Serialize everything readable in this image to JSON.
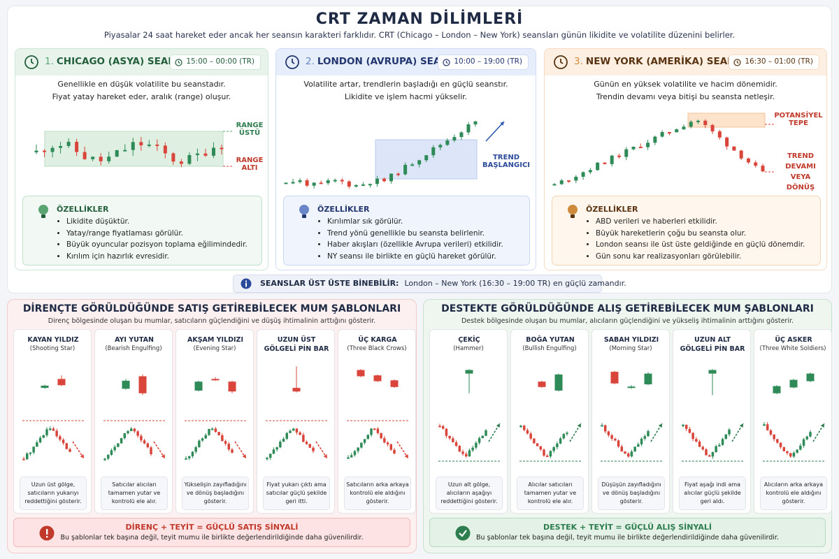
{
  "header": {
    "title": "CRT ZAMAN DİLİMLERİ",
    "subtitle": "Piyasalar 24 saat hareket eder ancak her seansın karakteri farklıdır. CRT (Chicago – London – New York) seansları günün likidite ve volatilite düzenini belirler."
  },
  "sessions": [
    {
      "number": "1.",
      "name": "CHICAGO (ASYA) SEANSI",
      "time": "15:00 – 00:00 (TR)",
      "description": [
        "Genellikle en düşük volatilite bu seanstadır.",
        "Fiyat yatay hareket eder, aralık (range) oluşur."
      ],
      "annotations": [
        "RANGE ÜSTÜ",
        "RANGE ALTI"
      ],
      "features_title": "ÖZELLİKLER",
      "features": [
        "Likidite düşüktür.",
        "Yatay/range fiyatlaması görülür.",
        "Büyük oyuncular pozisyon toplama eğilimindedir.",
        "Kırılım için hazırlık evresidir."
      ]
    },
    {
      "number": "2.",
      "name": "LONDON (AVRUPA) SEANSI",
      "time": "10:00 – 19:00 (TR)",
      "description": [
        "Volatilite artar, trendlerin başladığı en güçlü seanstır.",
        "Likidite ve işlem hacmi yükselir."
      ],
      "annotations": [
        "TREND BAŞLANGICI"
      ],
      "features_title": "ÖZELLİKLER",
      "features": [
        "Kırılımlar sık görülür.",
        "Trend yönü genellikle bu seansta belirlenir.",
        "Haber akışları (özellikle Avrupa verileri) etkilidir.",
        "NY seansı ile birlikte en güçlü hareket görülür."
      ]
    },
    {
      "number": "3.",
      "name": "NEW YORK (AMERİKA) SEANSI",
      "time": "16:30 – 01:00 (TR)",
      "description": [
        "Günün en yüksek volatilite ve hacim dönemidir.",
        "Trendin devamı veya bitişi bu seansta netleşir."
      ],
      "annotations": [
        "POTANSİYEL TEPE",
        "TREND DEVAMI VEYA DÖNÜŞ"
      ],
      "features_title": "ÖZELLİKLER",
      "features": [
        "ABD verileri ve haberleri etkilidir.",
        "Büyük hareketlerin çoğu bu seansta olur.",
        "London seansı ile üst üste geldiğinde en güçlü dönemdir.",
        "Gün sonu kar realizasyonları görülebilir."
      ]
    }
  ],
  "overlap_note": {
    "label": "SEANSLAR ÜST ÜSTE BİNEBİLİR:",
    "text": "London – New York (16:30 – 19:00 TR) en güçlü zamandır."
  },
  "panels": [
    {
      "title": "DİRENÇTE GÖRÜLDÜĞÜNDE SATIŞ GETİREBİLECEK MUM ŞABLONLARI",
      "subtitle": "Direnç bölgesinde oluşan bu mumlar, satıcıların güçlendiğini ve düşüş ihtimalinin arttığını gösterir.",
      "patterns": [
        {
          "name": "KAYAN YILDIZ",
          "english": "(Shooting Star)",
          "description": "Uzun üst gölge, satıcıların yukarıyı reddettiğini gösterir."
        },
        {
          "name": "AYI YUTAN",
          "english": "(Bearish Engulfing)",
          "description": "Satıcılar alıcıları tamamen yutar ve kontrolü ele alır."
        },
        {
          "name": "AKŞAM YILDIZI",
          "english": "(Evening Star)",
          "description": "Yükselişin zayıfladığını ve dönüş başladığını gösterir."
        },
        {
          "name": "UZUN ÜST GÖLGELİ PİN BAR",
          "description": "Fiyat yukarı çıktı ama satıcılar güçlü şekilde geri itti."
        },
        {
          "name": "ÜÇ KARGA",
          "english": "(Three Black Crows)",
          "description": "Satıcıların arka arkaya kontrolü ele aldığını gösterir."
        }
      ],
      "signal_title": "DİRENÇ + TEYİT = GÜÇLÜ SATIŞ SİNYALİ",
      "signal_text": "Bu şablonlar tek başına değil, teyit mumu ile birlikte değerlendirildiğinde daha güvenilirdir."
    },
    {
      "title": "DESTEKTE GÖRÜLDÜĞÜNDE ALIŞ GETİREBİLECEK MUM ŞABLONLARI",
      "subtitle": "Destek bölgesinde oluşan bu mumlar, alıcıların güçlendiğini ve yükseliş ihtimalinin arttığını gösterir.",
      "patterns": [
        {
          "name": "ÇEKİÇ",
          "english": "(Hammer)",
          "description": "Uzun alt gölge, alıcıların aşağıyı reddettiğini gösterir."
        },
        {
          "name": "BOĞA YUTAN",
          "english": "(Bullish Engulfing)",
          "description": "Alıcılar satıcıları tamamen yutar ve kontrolü ele alır."
        },
        {
          "name": "SABAH YILDIZI",
          "english": "(Morning Star)",
          "description": "Düşüşün zayıfladığını ve dönüş başladığını gösterir."
        },
        {
          "name": "UZUN ALT GÖLGELİ PİN BAR",
          "description": "Fiyat aşağı indi ama alıcılar güçlü şekilde geri aldı."
        },
        {
          "name": "ÜÇ ASKER",
          "english": "(Three White Soldiers)",
          "description": "Alıcıların arka arkaya kontrolü ele aldığını gösterir."
        }
      ],
      "signal_title": "DESTEK + TEYİT = GÜÇLÜ ALIŞ SİNYALİ",
      "signal_text": "Bu şablonlar tek başına değil, teyit mumu ile birlikte değerlendirildiğinde daha güvenilirdir."
    }
  ]
}
